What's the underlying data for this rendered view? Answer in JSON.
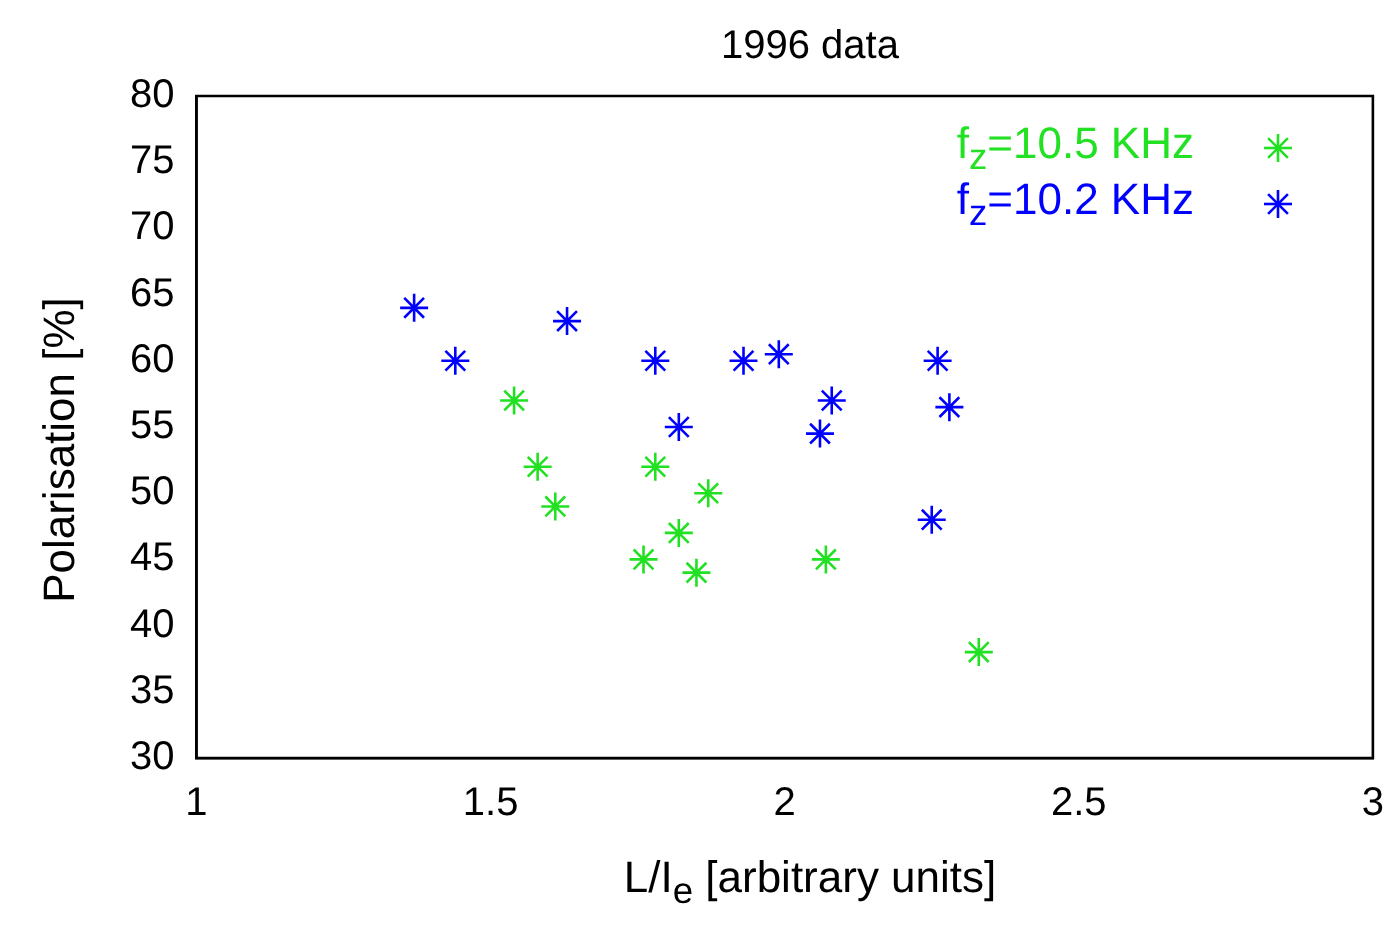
{
  "chart_data": {
    "type": "scatter",
    "title": "1996 data",
    "xlabel": "L/I$_{e}$ [arbitrary units]",
    "ylabel": "Polarisation [%]",
    "xlim": [
      1,
      3
    ],
    "xticks": [
      1,
      1.5,
      2,
      2.5,
      3
    ],
    "ylim": [
      30,
      80
    ],
    "yticks": [
      30,
      35,
      40,
      45,
      50,
      55,
      60,
      65,
      70,
      75,
      80
    ],
    "grid": false,
    "legend": "top right",
    "marker": "cross",
    "series": [
      {
        "name": "f$_{z}$=10.5 KHz",
        "color": "#22e022",
        "x": [
          1.54,
          1.58,
          1.61,
          1.76,
          1.78,
          1.82,
          1.85,
          1.87,
          2.07,
          2.33
        ],
        "values": [
          57,
          52,
          49,
          45,
          52,
          47,
          44,
          50,
          45,
          38
        ]
      },
      {
        "name": "f$_{z}$=10.2 KHz",
        "color": "#0000ff",
        "x": [
          1.37,
          1.44,
          1.63,
          1.78,
          1.82,
          1.93,
          1.99,
          2.08,
          2.06,
          2.25,
          2.26,
          2.28
        ],
        "values": [
          64,
          60,
          63,
          60,
          55,
          60,
          60.5,
          57,
          54.5,
          48,
          60,
          56.5
        ]
      }
    ]
  }
}
